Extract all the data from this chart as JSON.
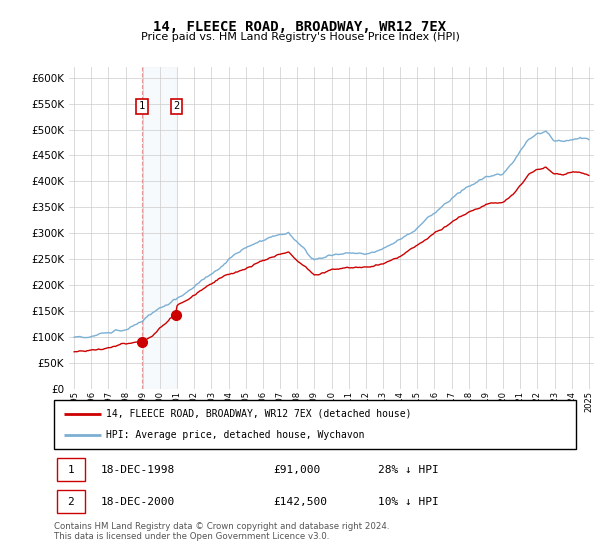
{
  "title": "14, FLEECE ROAD, BROADWAY, WR12 7EX",
  "subtitle": "Price paid vs. HM Land Registry's House Price Index (HPI)",
  "ylim": [
    0,
    620000
  ],
  "yticks": [
    0,
    50000,
    100000,
    150000,
    200000,
    250000,
    300000,
    350000,
    400000,
    450000,
    500000,
    550000,
    600000
  ],
  "hpi_color": "#7bafd4",
  "price_color": "#cc0000",
  "sale1_x": 1998.96,
  "sale1_price": 91000,
  "sale2_x": 2000.96,
  "sale2_price": 142500,
  "legend_line1": "14, FLEECE ROAD, BROADWAY, WR12 7EX (detached house)",
  "legend_line2": "HPI: Average price, detached house, Wychavon",
  "footnote": "Contains HM Land Registry data © Crown copyright and database right 2024.\nThis data is licensed under the Open Government Licence v3.0.",
  "background_color": "#ffffff",
  "hpi_key_years": [
    1995,
    1996,
    1997,
    1998,
    1999,
    2000,
    2001,
    2002,
    2003,
    2004,
    2005,
    2006,
    2007,
    2007.5,
    2008,
    2008.5,
    2009,
    2009.5,
    2010,
    2011,
    2012,
    2013,
    2014,
    2015,
    2016,
    2017,
    2018,
    2019,
    2020,
    2020.5,
    2021,
    2021.5,
    2022,
    2022.5,
    2023,
    2023.5,
    2024,
    2024.5,
    2025
  ],
  "hpi_key_vals": [
    100000,
    105000,
    112000,
    122000,
    138000,
    158000,
    178000,
    200000,
    225000,
    252000,
    268000,
    285000,
    300000,
    305000,
    285000,
    270000,
    255000,
    260000,
    268000,
    272000,
    270000,
    278000,
    295000,
    318000,
    348000,
    375000,
    398000,
    415000,
    420000,
    440000,
    465000,
    490000,
    500000,
    505000,
    490000,
    488000,
    492000,
    495000,
    490000
  ],
  "red_key_years": [
    1995,
    1996,
    1997,
    1998,
    1998.96,
    1999.5,
    2000,
    2000.96,
    2001,
    2002,
    2003,
    2004,
    2005,
    2006,
    2007,
    2007.5,
    2008,
    2008.5,
    2009,
    2009.5,
    2010,
    2011,
    2012,
    2013,
    2014,
    2015,
    2016,
    2017,
    2018,
    2019,
    2020,
    2020.5,
    2021,
    2021.5,
    2022,
    2022.5,
    2023,
    2023.5,
    2024,
    2024.5,
    2025
  ],
  "red_key_vals": [
    72000,
    76000,
    81000,
    88000,
    91000,
    100000,
    118000,
    142500,
    157000,
    175000,
    196000,
    218000,
    230000,
    245000,
    258000,
    262000,
    244000,
    232000,
    218000,
    224000,
    230000,
    234000,
    232000,
    238000,
    254000,
    274000,
    300000,
    323000,
    343000,
    358000,
    362000,
    380000,
    400000,
    422000,
    432000,
    435000,
    422000,
    420000,
    424000,
    427000,
    422000
  ]
}
